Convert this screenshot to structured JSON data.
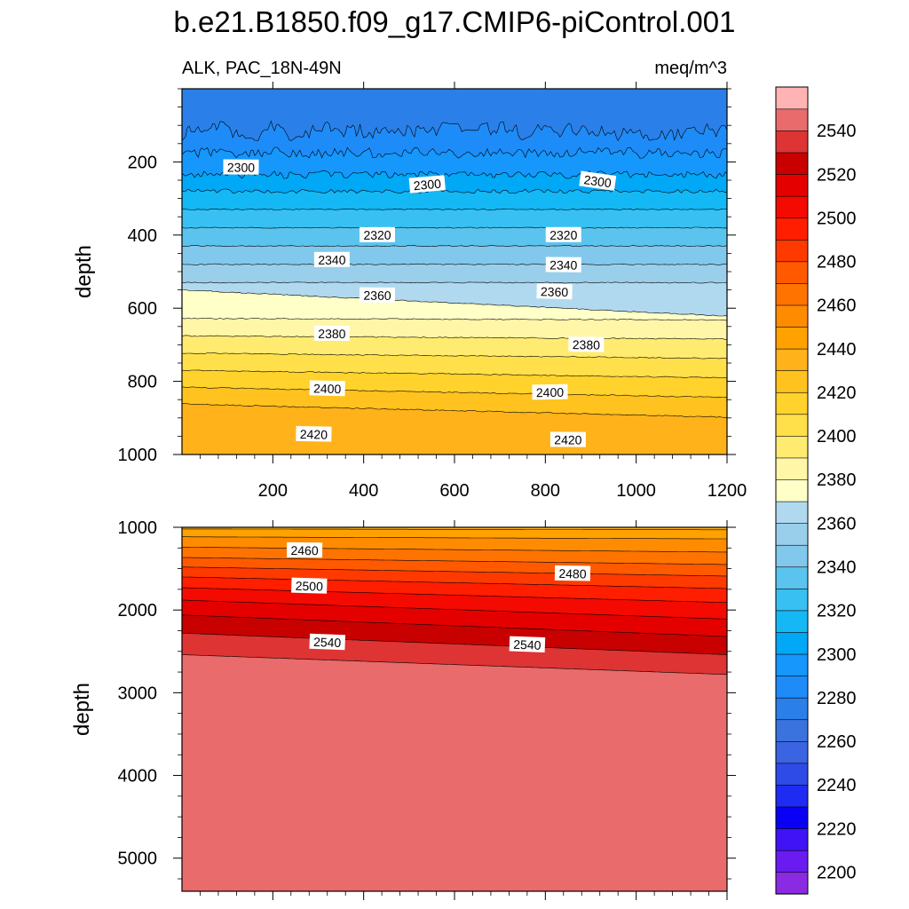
{
  "chart_data": {
    "type": "contour",
    "title": "b.e21.B1850.f09_g17.CMIP6-piControl.001",
    "subtitle_left": "ALK, PAC_18N-49N",
    "subtitle_right": "meq/m^3",
    "xlabel": "",
    "ylabel": "depth",
    "xlim": [
      0,
      1200
    ],
    "x_ticks": [
      200,
      400,
      600,
      800,
      1000,
      1200
    ],
    "panels": [
      {
        "name": "upper",
        "ylim": [
          0,
          1000
        ],
        "y_ticks": [
          200,
          400,
          600,
          800,
          1000
        ],
        "show_x_tick_labels": true,
        "contour_levels": [
          2280,
          2290,
          2300,
          2310,
          2320,
          2330,
          2340,
          2350,
          2360,
          2370,
          2380,
          2390,
          2400,
          2410,
          2420,
          2430
        ],
        "contour_labels": [
          {
            "text": "2300",
            "x": 130,
            "y": 215
          },
          {
            "text": "2300",
            "x": 540,
            "y": 262
          },
          {
            "text": "2300",
            "x": 915,
            "y": 253
          },
          {
            "text": "2320",
            "x": 430,
            "y": 400
          },
          {
            "text": "2320",
            "x": 840,
            "y": 400
          },
          {
            "text": "2340",
            "x": 330,
            "y": 468
          },
          {
            "text": "2340",
            "x": 840,
            "y": 482
          },
          {
            "text": "2360",
            "x": 430,
            "y": 565
          },
          {
            "text": "2360",
            "x": 820,
            "y": 555
          },
          {
            "text": "2380",
            "x": 330,
            "y": 670
          },
          {
            "text": "2380",
            "x": 890,
            "y": 700
          },
          {
            "text": "2400",
            "x": 320,
            "y": 820
          },
          {
            "text": "2400",
            "x": 810,
            "y": 830
          },
          {
            "text": "2420",
            "x": 290,
            "y": 945
          },
          {
            "text": "2420",
            "x": 850,
            "y": 960
          }
        ]
      },
      {
        "name": "lower",
        "ylim": [
          1000,
          5400
        ],
        "y_ticks": [
          1000,
          2000,
          3000,
          4000,
          5000
        ],
        "show_x_tick_labels": false,
        "contour_levels": [
          2440,
          2450,
          2460,
          2470,
          2480,
          2490,
          2500,
          2510,
          2520,
          2530,
          2540,
          2550
        ],
        "contour_labels": [
          {
            "text": "2460",
            "x": 270,
            "y": 1280
          },
          {
            "text": "2480",
            "x": 860,
            "y": 1560
          },
          {
            "text": "2500",
            "x": 280,
            "y": 1710
          },
          {
            "text": "2540",
            "x": 320,
            "y": 2390
          },
          {
            "text": "2540",
            "x": 760,
            "y": 2420
          }
        ]
      }
    ],
    "colorbar": {
      "levels": [
        2200,
        2210,
        2220,
        2230,
        2240,
        2250,
        2260,
        2270,
        2280,
        2290,
        2300,
        2310,
        2320,
        2330,
        2340,
        2350,
        2360,
        2370,
        2380,
        2390,
        2400,
        2410,
        2420,
        2430,
        2440,
        2450,
        2460,
        2470,
        2480,
        2490,
        2500,
        2510,
        2520,
        2530,
        2540,
        2550
      ],
      "tick_labels": [
        "2200",
        "2220",
        "2240",
        "2260",
        "2280",
        "2300",
        "2320",
        "2340",
        "2360",
        "2380",
        "2400",
        "2420",
        "2440",
        "2460",
        "2480",
        "2500",
        "2520",
        "2540"
      ],
      "colors": [
        "#8A2BE2",
        "#6A1BF0",
        "#3F13F5",
        "#0A00F5",
        "#1E2BF2",
        "#2E4BE8",
        "#3A64E2",
        "#3A72DE",
        "#2B7FE8",
        "#1E8CF8",
        "#1597FC",
        "#00A8F6",
        "#14B8F4",
        "#38C0F2",
        "#5AC4EE",
        "#82C8EC",
        "#9ACFEB",
        "#B0D9EF",
        "#FFFFC8",
        "#FFF6A8",
        "#FFEB70",
        "#FFE04A",
        "#FFD22C",
        "#FFC21E",
        "#FFB21A",
        "#FFA200",
        "#FF8C00",
        "#FF7400",
        "#FF5A00",
        "#FF3A00",
        "#FF1E00",
        "#F40A00",
        "#E50000",
        "#C80000",
        "#DE3434",
        "#EA6B6B",
        "#FFB3B3"
      ]
    }
  }
}
